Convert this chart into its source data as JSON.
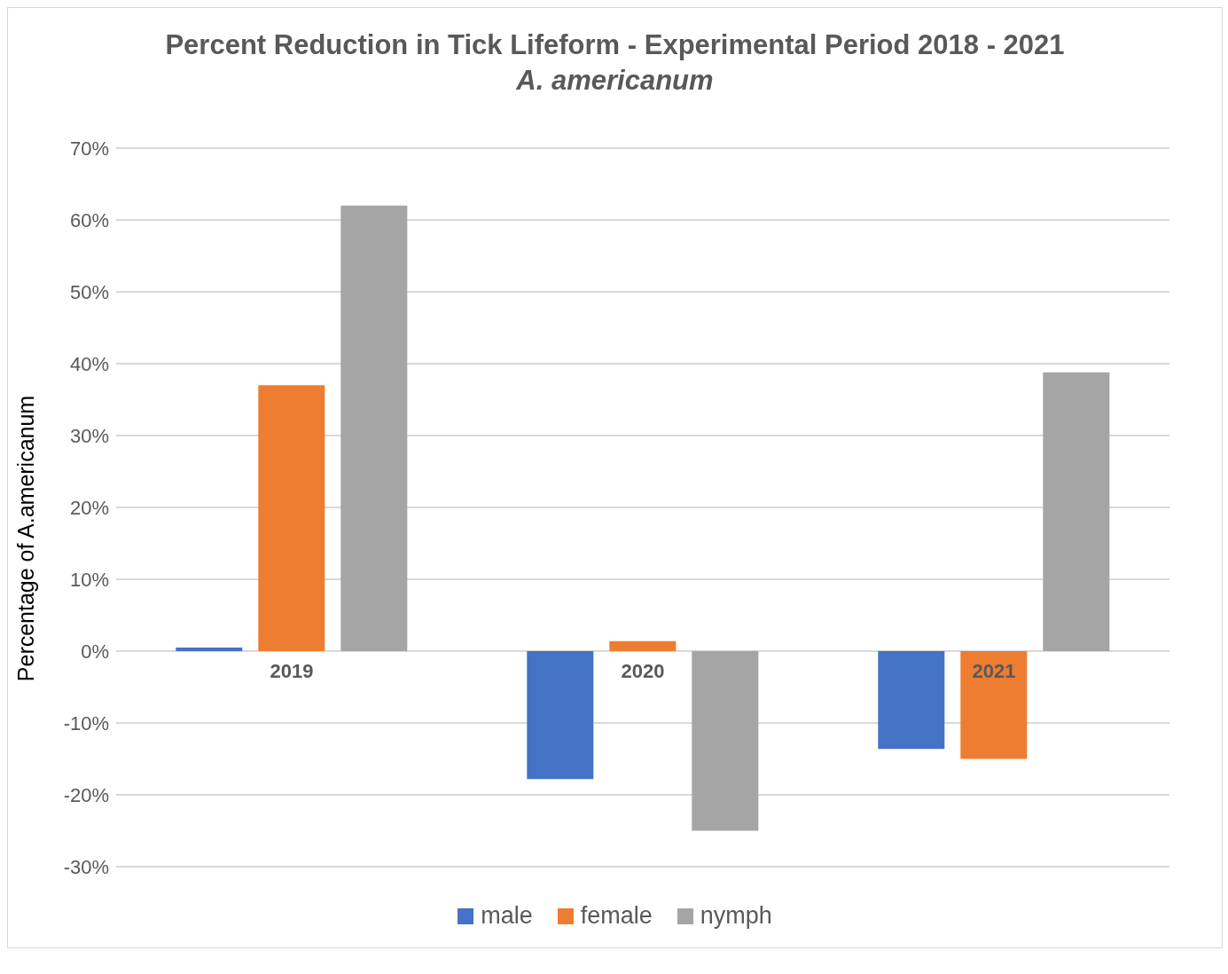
{
  "chart_data": {
    "type": "bar",
    "title": "Percent Reduction in Tick Lifeform - Experimental Period 2018 - 2021",
    "subtitle": "A. americanum",
    "ylabel": "Percentage of A.americanum",
    "categories": [
      "2019",
      "2020",
      "2021"
    ],
    "series": [
      {
        "name": "male",
        "color": "#4472c4",
        "values": [
          0.5,
          -17.8,
          -13.6
        ]
      },
      {
        "name": "female",
        "color": "#ed7d31",
        "values": [
          37,
          1.4,
          -15
        ]
      },
      {
        "name": "nymph",
        "color": "#a5a5a5",
        "values": [
          62,
          -25,
          38.8
        ]
      }
    ],
    "ylim": [
      -30,
      70
    ],
    "yticks": [
      {
        "value": -30,
        "label": "-30%"
      },
      {
        "value": -20,
        "label": "-20%"
      },
      {
        "value": -10,
        "label": "-10%"
      },
      {
        "value": 0,
        "label": "0%"
      },
      {
        "value": 10,
        "label": "10%"
      },
      {
        "value": 20,
        "label": "20%"
      },
      {
        "value": 30,
        "label": "30%"
      },
      {
        "value": 40,
        "label": "40%"
      },
      {
        "value": 50,
        "label": "50%"
      },
      {
        "value": 60,
        "label": "60%"
      },
      {
        "value": 70,
        "label": "70%"
      }
    ],
    "grid": "y",
    "legend": "bottom"
  }
}
